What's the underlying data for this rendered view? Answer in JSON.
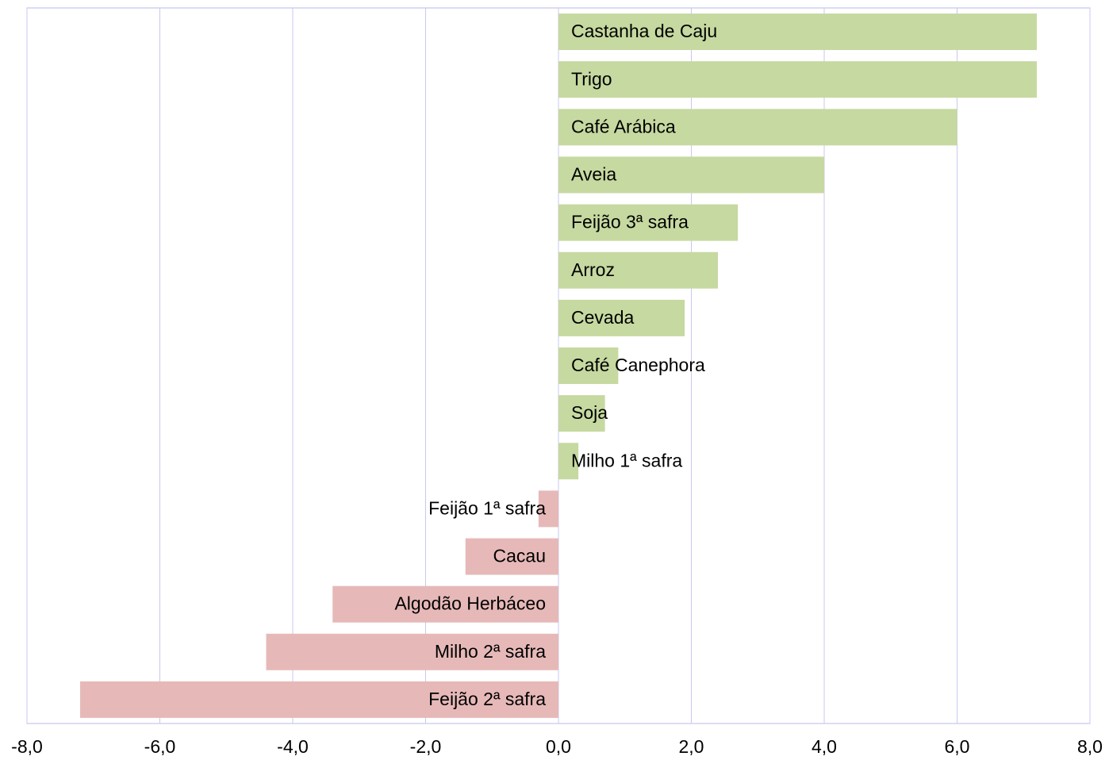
{
  "chart_data": {
    "type": "hbar",
    "categories": [
      "Castanha de Caju",
      "Trigo",
      "Café Arábica",
      "Aveia",
      "Feijão 3ª safra",
      "Arroz",
      "Cevada",
      "Café Canephora",
      "Soja",
      "Milho 1ª safra",
      "Feijão 1ª safra",
      "Cacau",
      "Algodão Herbáceo",
      "Milho 2ª safra",
      "Feijão 2ª safra"
    ],
    "values": [
      7.2,
      7.2,
      6.0,
      4.0,
      2.7,
      2.4,
      1.9,
      0.9,
      0.7,
      0.3,
      -0.3,
      -1.4,
      -3.4,
      -4.4,
      -7.2
    ],
    "positive_color": "#c6d9a0",
    "negative_color": "#e6b9b8",
    "xlim": [
      -8,
      8
    ],
    "xticks": [
      {
        "value": -8,
        "label": "-8,0"
      },
      {
        "value": -6,
        "label": "-6,0"
      },
      {
        "value": -4,
        "label": "-4,0"
      },
      {
        "value": -2,
        "label": "-2,0"
      },
      {
        "value": 0,
        "label": "0,0"
      },
      {
        "value": 2,
        "label": "2,0"
      },
      {
        "value": 4,
        "label": "4,0"
      },
      {
        "value": 6,
        "label": "6,0"
      },
      {
        "value": 8,
        "label": "8,0"
      }
    ],
    "grid": true
  }
}
